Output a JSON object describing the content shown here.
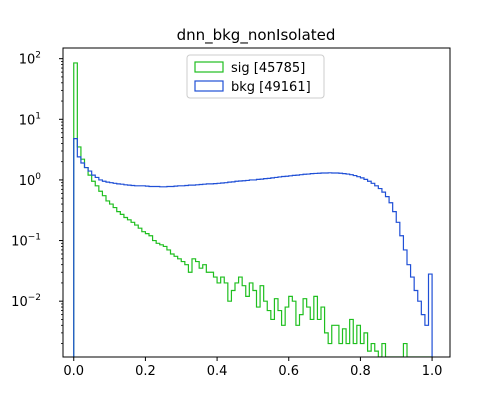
{
  "chart_data": {
    "type": "step-histogram",
    "title": "dnn_bkg_nonIsolated",
    "xlabel": "",
    "ylabel": "",
    "xlim": [
      -0.03,
      1.05
    ],
    "ylim": [
      0.0012,
      150
    ],
    "y_scale": "log",
    "grid": false,
    "legend_position": "upper center",
    "x_ticks": [
      {
        "value": 0.0,
        "label": "0.0"
      },
      {
        "value": 0.2,
        "label": "0.2"
      },
      {
        "value": 0.4,
        "label": "0.4"
      },
      {
        "value": 0.6,
        "label": "0.6"
      },
      {
        "value": 0.8,
        "label": "0.8"
      },
      {
        "value": 1.0,
        "label": "1.0"
      }
    ],
    "y_ticks": [
      {
        "value": 100,
        "base": "10",
        "exp": "2"
      },
      {
        "value": 10,
        "base": "10",
        "exp": "1"
      },
      {
        "value": 1,
        "base": "10",
        "exp": "0"
      },
      {
        "value": 0.1,
        "base": "10",
        "exp": "−1"
      },
      {
        "value": 0.01,
        "base": "10",
        "exp": "−2"
      }
    ],
    "bin_edges": {
      "start": 0.0,
      "stop": 1.0,
      "count": 100
    },
    "series": [
      {
        "name": "sig [45785]",
        "color": "#1fbf1f",
        "values": [
          85,
          3.5,
          2.2,
          1.6,
          1.2,
          0.95,
          0.8,
          0.65,
          0.55,
          0.45,
          0.4,
          0.35,
          0.3,
          0.27,
          0.24,
          0.22,
          0.2,
          0.18,
          0.16,
          0.14,
          0.13,
          0.12,
          0.1,
          0.09,
          0.085,
          0.08,
          0.07,
          0.06,
          0.055,
          0.05,
          0.045,
          0.04,
          0.03,
          0.05,
          0.045,
          0.035,
          0.04,
          0.03,
          0.03,
          0.025,
          0.02,
          0.025,
          0.02,
          0.01,
          0.015,
          0.02,
          0.025,
          0.018,
          0.012,
          0.02,
          0.015,
          0.008,
          0.018,
          0.01,
          0.007,
          0.005,
          0.011,
          0.007,
          0.004,
          0.008,
          0.012,
          0.01,
          0.004,
          0.006,
          0.011,
          0.008,
          0.005,
          0.012,
          0.005,
          0.008,
          0.003,
          0.002,
          0.004,
          0.004,
          0.002,
          0.0035,
          0.002,
          0.005,
          0.002,
          0.004,
          0.002,
          0.003,
          0.0015,
          0.002,
          0.0015,
          0.0008,
          0.002,
          0.0008,
          0.0008,
          0.0008,
          0.0008,
          0.0008,
          0.002,
          0.0008,
          0.0008,
          0.0008,
          0.0008,
          0.0008,
          0.0008,
          0.0008
        ]
      },
      {
        "name": "bkg [49161]",
        "color": "#1f4fd6",
        "values": [
          4.8,
          2.4,
          1.9,
          1.6,
          1.4,
          1.2,
          1.1,
          1.0,
          0.95,
          0.92,
          0.9,
          0.88,
          0.86,
          0.85,
          0.83,
          0.82,
          0.81,
          0.8,
          0.8,
          0.8,
          0.79,
          0.78,
          0.78,
          0.78,
          0.77,
          0.77,
          0.78,
          0.78,
          0.79,
          0.8,
          0.8,
          0.81,
          0.82,
          0.82,
          0.83,
          0.84,
          0.85,
          0.86,
          0.86,
          0.87,
          0.88,
          0.89,
          0.9,
          0.92,
          0.93,
          0.95,
          0.96,
          0.97,
          0.98,
          1.0,
          1.0,
          1.02,
          1.03,
          1.05,
          1.06,
          1.08,
          1.1,
          1.12,
          1.14,
          1.15,
          1.17,
          1.19,
          1.2,
          1.22,
          1.24,
          1.25,
          1.27,
          1.28,
          1.29,
          1.3,
          1.3,
          1.31,
          1.3,
          1.3,
          1.29,
          1.27,
          1.25,
          1.22,
          1.18,
          1.13,
          1.08,
          1.02,
          0.95,
          0.88,
          0.8,
          0.72,
          0.63,
          0.53,
          0.42,
          0.3,
          0.2,
          0.12,
          0.07,
          0.04,
          0.025,
          0.015,
          0.01,
          0.006,
          0.004,
          0.028
        ]
      }
    ]
  }
}
